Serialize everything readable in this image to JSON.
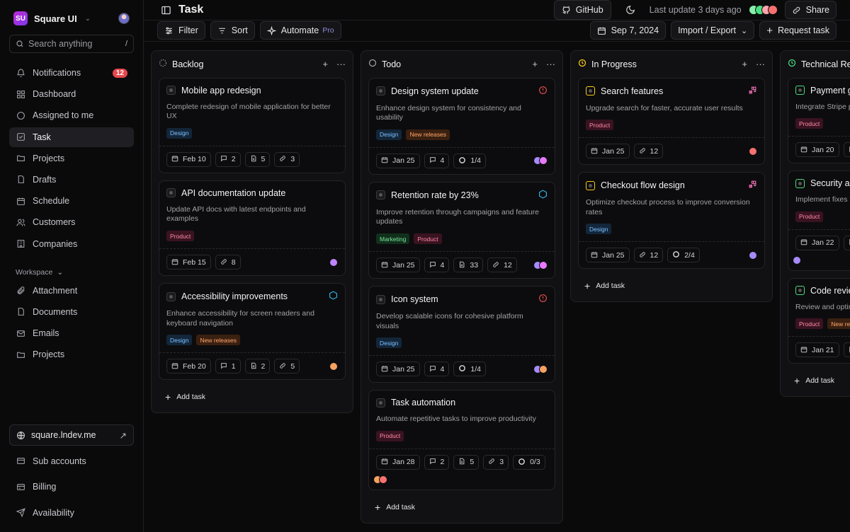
{
  "brand": {
    "initials": "SU",
    "name": "Square UI"
  },
  "search": {
    "placeholder": "Search anything",
    "shortcut": "/"
  },
  "nav": [
    {
      "label": "Notifications",
      "badge": "12",
      "icon": "bell-icon"
    },
    {
      "label": "Dashboard",
      "icon": "grid-icon"
    },
    {
      "label": "Assigned to me",
      "icon": "circle-icon"
    },
    {
      "label": "Task",
      "icon": "tasks-icon",
      "active": true
    },
    {
      "label": "Projects",
      "icon": "folder-icon"
    },
    {
      "label": "Drafts",
      "icon": "draft-icon"
    },
    {
      "label": "Schedule",
      "icon": "calendar-icon"
    },
    {
      "label": "Customers",
      "icon": "users-icon"
    },
    {
      "label": "Companies",
      "icon": "building-icon"
    }
  ],
  "workspace": {
    "label": "Workspace",
    "items": [
      {
        "label": "Attachment",
        "icon": "paperclip-icon"
      },
      {
        "label": "Documents",
        "icon": "file-icon"
      },
      {
        "label": "Emails",
        "icon": "mail-icon"
      },
      {
        "label": "Projects",
        "icon": "folder-icon"
      }
    ]
  },
  "footer": {
    "site": "square.lndev.me",
    "items": [
      {
        "label": "Sub accounts",
        "icon": "layers-icon"
      },
      {
        "label": "Billing",
        "icon": "card-icon"
      },
      {
        "label": "Availability",
        "icon": "send-icon"
      }
    ]
  },
  "header": {
    "title": "Task",
    "github": "GitHub",
    "last_update": "Last update 3 days ago",
    "share": "Share"
  },
  "toolbar": {
    "filter": "Filter",
    "sort": "Sort",
    "automate": "Automate",
    "pro": "Pro",
    "date": "Sep 7, 2024",
    "import_export": "Import / Export",
    "request": "Request task"
  },
  "add_task": "Add task",
  "columns": [
    {
      "name": "Backlog",
      "status_color": "#8b8b90",
      "status": "dashed",
      "cards": [
        {
          "title": "Mobile app redesign",
          "desc": "Complete redesign of mobile application for better UX",
          "tags": [
            "Design"
          ],
          "date": "Feb 10",
          "comments": "2",
          "files": "5",
          "links": "3",
          "people": []
        },
        {
          "title": "API documentation update",
          "desc": "Update API docs with latest endpoints and examples",
          "tags": [
            "Product"
          ],
          "date": "Feb 15",
          "links": "8",
          "people": [
            "#c084fc"
          ]
        },
        {
          "title": "Accessibility improvements",
          "desc": "Enhance accessibility for screen readers and keyboard navigation",
          "tags": [
            "Design",
            "New releases"
          ],
          "flag": "hex",
          "date": "Feb 20",
          "comments": "1",
          "files": "2",
          "links": "5",
          "people": [
            "#f4a261"
          ]
        }
      ]
    },
    {
      "name": "Todo",
      "status_color": "#a1a1a8",
      "status": "empty",
      "cards": [
        {
          "title": "Design system update",
          "desc": "Enhance design system for consistency and usability",
          "tags": [
            "Design",
            "New releases"
          ],
          "flag": "alert",
          "date": "Jan 25",
          "comments": "4",
          "progress": "1/4",
          "people": [
            "#a78bfa",
            "#e879f9"
          ]
        },
        {
          "title": "Retention rate by 23%",
          "desc": "Improve retention through campaigns and feature updates",
          "tags": [
            "Marketing",
            "Product"
          ],
          "flag": "hex",
          "date": "Jan 25",
          "comments": "4",
          "files": "33",
          "links": "12",
          "people": [
            "#a78bfa",
            "#e879f9"
          ]
        },
        {
          "title": "Icon system",
          "desc": "Develop scalable icons for cohesive platform visuals",
          "tags": [
            "Design"
          ],
          "flag": "alert",
          "date": "Jan 25",
          "comments": "4",
          "progress": "1/4",
          "people": [
            "#a78bfa",
            "#f4a261"
          ]
        },
        {
          "title": "Task automation",
          "desc": "Automate repetitive tasks to improve productivity",
          "tags": [
            "Product"
          ],
          "date": "Jan 28",
          "comments": "2",
          "files": "5",
          "links": "3",
          "progress": "0/3",
          "people_left": [
            "#f4a261",
            "#f87171"
          ]
        }
      ]
    },
    {
      "name": "In Progress",
      "status_color": "#facc15",
      "status": "half",
      "cards": [
        {
          "title": "Search features",
          "desc": "Upgrade search for faster, accurate user results",
          "tags": [
            "Product"
          ],
          "flag": "puzzle",
          "date": "Jan 25",
          "links": "12",
          "people": [
            "#f87171"
          ]
        },
        {
          "title": "Checkout flow design",
          "desc": "Optimize checkout process to improve conversion rates",
          "tags": [
            "Design"
          ],
          "flag": "puzzle",
          "date": "Jan 25",
          "links": "12",
          "progress": "2/4",
          "people": [
            "#a78bfa"
          ]
        }
      ]
    },
    {
      "name": "Technical Rev",
      "status_color": "#4ade80",
      "status": "clock",
      "cards": [
        {
          "title": "Payment ga",
          "desc": "Integrate Stripe pa",
          "tags": [
            "Product"
          ],
          "date": "Jan 20",
          "comments": "",
          "people": []
        },
        {
          "title": "Security au",
          "desc": "Implement fixes fr",
          "tags": [
            "Product"
          ],
          "date": "Jan 22",
          "comments": "",
          "people_left": [
            "#a78bfa"
          ]
        },
        {
          "title": "Code review",
          "desc": "Review and optimi",
          "tags": [
            "Product",
            "New rel"
          ],
          "date": "Jan 21",
          "comments": "",
          "people": []
        }
      ]
    }
  ],
  "colors": {
    "accent": "#e5484d",
    "design": "#7cc0ff",
    "product": "#ff8bab",
    "new": "#ffa66b",
    "marketing": "#7ee2a0"
  }
}
